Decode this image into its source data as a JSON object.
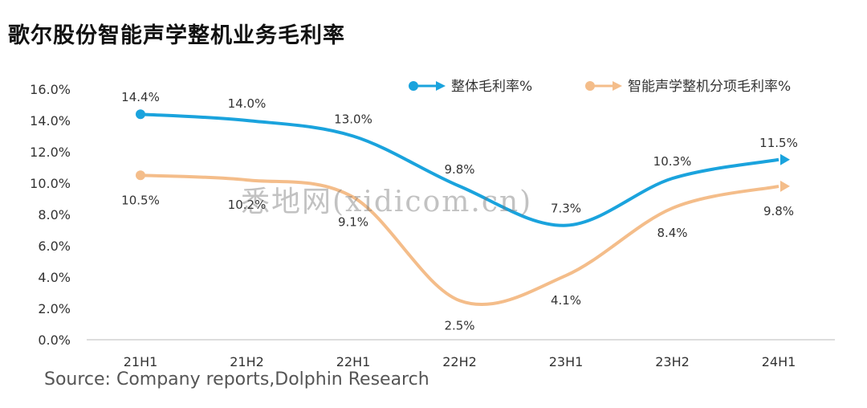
{
  "title": "歌尔股份智能声学整机业务毛利率",
  "source": "Source: Company reports,Dolphin Research",
  "watermark": "悉地网(xidicom.cn)",
  "chart_data": {
    "type": "line",
    "title": "歌尔股份智能声学整机业务毛利率",
    "categories": [
      "21H1",
      "21H2",
      "22H1",
      "22H2",
      "23H1",
      "23H2",
      "24H1"
    ],
    "y_ticks": [
      "0.0%",
      "2.0%",
      "4.0%",
      "6.0%",
      "8.0%",
      "10.0%",
      "12.0%",
      "14.0%",
      "16.0%"
    ],
    "ylim": [
      0,
      16
    ],
    "legend_position": "top-right",
    "series": [
      {
        "name": "整体毛利率%",
        "color": "#1aa3dd",
        "values": [
          14.4,
          14.0,
          13.0,
          9.8,
          7.3,
          10.3,
          11.5
        ],
        "labels": [
          "14.4%",
          "14.0%",
          "13.0%",
          "9.8%",
          "7.3%",
          "10.3%",
          "11.5%"
        ],
        "label_side": "above"
      },
      {
        "name": "智能声学整机分项毛利率%",
        "color": "#f4bd8a",
        "values": [
          10.5,
          10.2,
          9.1,
          2.5,
          4.1,
          8.4,
          9.8
        ],
        "labels": [
          "10.5%",
          "10.2%",
          "9.1%",
          "2.5%",
          "4.1%",
          "8.4%",
          "9.8%"
        ],
        "label_side": "below"
      }
    ]
  }
}
